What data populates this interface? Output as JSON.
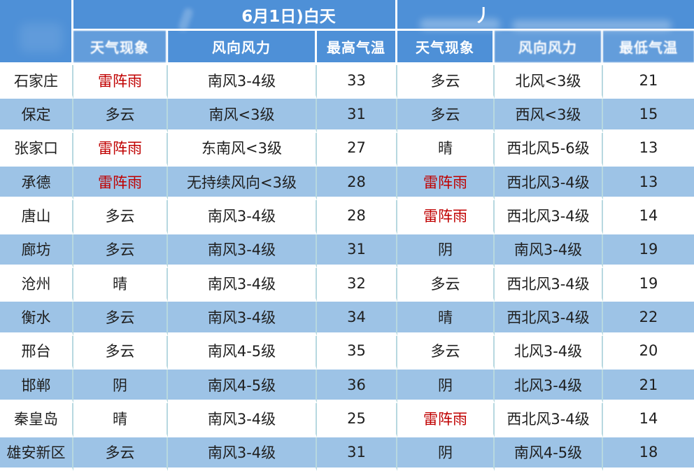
{
  "colors": {
    "header_blue": "#4e90d7",
    "row_alt_blue": "#9dc3e6",
    "alert_red": "#c00000",
    "divider": "#b7d8e0"
  },
  "chart_data": {
    "type": "table",
    "corner_label": "",
    "day_section": {
      "title": "6月1日)白天",
      "columns": [
        {
          "label": "天气现象",
          "faded": true
        },
        {
          "label": "风向风力",
          "faded": false
        },
        {
          "label": "最高气温",
          "faded": false
        }
      ]
    },
    "night_section": {
      "title": "丿",
      "columns": [
        {
          "label": "天气现象",
          "faded": false
        },
        {
          "label": "风向风力",
          "faded": true
        },
        {
          "label": "最低气温",
          "faded": true
        }
      ]
    },
    "rows": [
      {
        "city": "石家庄",
        "day": {
          "weather": "雷阵雨",
          "alert": true,
          "wind": "南风3-4级",
          "high": "33"
        },
        "night": {
          "weather": "多云",
          "alert": false,
          "wind": "北风<3级",
          "low": "21"
        }
      },
      {
        "city": "保定",
        "day": {
          "weather": "多云",
          "alert": false,
          "wind": "南风<3级",
          "high": "31"
        },
        "night": {
          "weather": "多云",
          "alert": false,
          "wind": "西风<3级",
          "low": "15"
        }
      },
      {
        "city": "张家口",
        "day": {
          "weather": "雷阵雨",
          "alert": true,
          "wind": "东南风<3级",
          "high": "27"
        },
        "night": {
          "weather": "晴",
          "alert": false,
          "wind": "西北风5-6级",
          "low": "13"
        }
      },
      {
        "city": "承德",
        "day": {
          "weather": "雷阵雨",
          "alert": true,
          "wind": "无持续风向<3级",
          "high": "28"
        },
        "night": {
          "weather": "雷阵雨",
          "alert": true,
          "wind": "西北风3-4级",
          "low": "13"
        }
      },
      {
        "city": "唐山",
        "day": {
          "weather": "多云",
          "alert": false,
          "wind": "南风3-4级",
          "high": "28"
        },
        "night": {
          "weather": "雷阵雨",
          "alert": true,
          "wind": "西北风3-4级",
          "low": "14"
        }
      },
      {
        "city": "廊坊",
        "day": {
          "weather": "多云",
          "alert": false,
          "wind": "南风3-4级",
          "high": "31"
        },
        "night": {
          "weather": "阴",
          "alert": false,
          "wind": "南风3-4级",
          "low": "19"
        }
      },
      {
        "city": "沧州",
        "day": {
          "weather": "晴",
          "alert": false,
          "wind": "南风3-4级",
          "high": "32"
        },
        "night": {
          "weather": "多云",
          "alert": false,
          "wind": "西北风3-4级",
          "low": "19"
        }
      },
      {
        "city": "衡水",
        "day": {
          "weather": "多云",
          "alert": false,
          "wind": "南风3-4级",
          "high": "34"
        },
        "night": {
          "weather": "晴",
          "alert": false,
          "wind": "西北风3-4级",
          "low": "22"
        }
      },
      {
        "city": "邢台",
        "day": {
          "weather": "多云",
          "alert": false,
          "wind": "南风4-5级",
          "high": "35"
        },
        "night": {
          "weather": "多云",
          "alert": false,
          "wind": "北风3-4级",
          "low": "20"
        }
      },
      {
        "city": "邯郸",
        "day": {
          "weather": "阴",
          "alert": false,
          "wind": "南风4-5级",
          "high": "36"
        },
        "night": {
          "weather": "阴",
          "alert": false,
          "wind": "北风3-4级",
          "low": "21"
        }
      },
      {
        "city": "秦皇岛",
        "day": {
          "weather": "晴",
          "alert": false,
          "wind": "南风3-4级",
          "high": "25"
        },
        "night": {
          "weather": "雷阵雨",
          "alert": true,
          "wind": "西北风3-4级",
          "low": "14"
        }
      },
      {
        "city": "雄安新区",
        "day": {
          "weather": "多云",
          "alert": false,
          "wind": "南风3-4级",
          "high": "31"
        },
        "night": {
          "weather": "阴",
          "alert": false,
          "wind": "南风4-5级",
          "low": "18"
        }
      }
    ]
  }
}
